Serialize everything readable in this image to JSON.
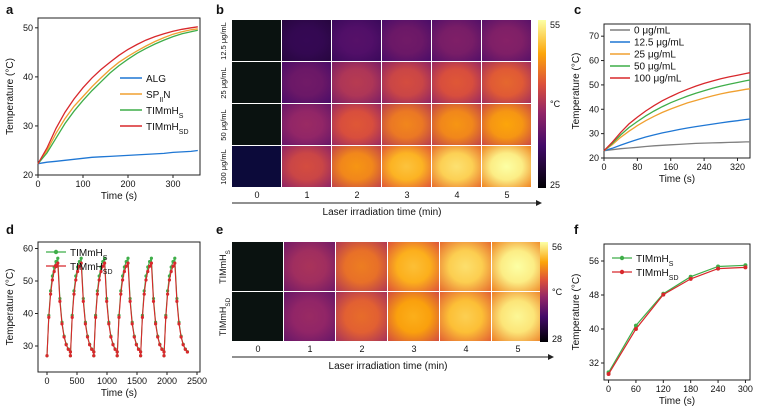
{
  "colors": {
    "ALG": "#1f77d4",
    "SPN": "#f0a030",
    "TIMmHS": "#3fae49",
    "TIMmHSD": "#d8282c",
    "c0": "#7f7f7f",
    "c12": "#1f77d4",
    "c25": "#f0a030",
    "c50": "#3fae49",
    "c100": "#d8282c"
  },
  "chart_data": [
    {
      "panel": "a",
      "type": "line",
      "xlabel": "Time (s)",
      "ylabel": "Temperature (°C)",
      "xlim": [
        0,
        360
      ],
      "ylim": [
        20,
        52
      ],
      "xticks": [
        "0",
        "100",
        "200",
        "300"
      ],
      "yticks": [
        "20",
        "30",
        "40",
        "50"
      ],
      "x": [
        0,
        20,
        40,
        60,
        80,
        100,
        120,
        140,
        160,
        180,
        200,
        220,
        240,
        260,
        280,
        300,
        320,
        340,
        355
      ],
      "series": [
        {
          "name": "ALG",
          "values": [
            22.3,
            22.6,
            22.8,
            23.0,
            23.2,
            23.4,
            23.6,
            23.7,
            23.8,
            23.9,
            24.0,
            24.1,
            24.2,
            24.3,
            24.4,
            24.6,
            24.7,
            24.8,
            25.0
          ]
        },
        {
          "name": "SPN",
          "values": [
            22.3,
            25.0,
            28.5,
            31.5,
            34.0,
            36.0,
            38.0,
            39.8,
            41.5,
            43.0,
            44.2,
            45.3,
            46.3,
            47.2,
            48.0,
            48.7,
            49.2,
            49.6,
            49.8
          ]
        },
        {
          "name": "TIMmHS",
          "values": [
            22.3,
            24.5,
            27.5,
            30.5,
            33.0,
            35.2,
            37.2,
            39.0,
            40.8,
            42.3,
            43.6,
            44.8,
            45.8,
            46.7,
            47.5,
            48.2,
            48.8,
            49.2,
            49.5
          ]
        },
        {
          "name": "TIMmHSD",
          "values": [
            22.3,
            25.5,
            29.5,
            32.8,
            35.5,
            37.8,
            39.8,
            41.5,
            43.0,
            44.4,
            45.6,
            46.6,
            47.5,
            48.2,
            48.8,
            49.3,
            49.7,
            50.0,
            50.2
          ]
        }
      ],
      "legend": [
        {
          "pre": "ALG",
          "sub": "",
          "post": ""
        },
        {
          "pre": "SP",
          "sub": "II",
          "post": "N"
        },
        {
          "pre": "TIMmH",
          "sub": "S",
          "post": ""
        },
        {
          "pre": "TIMmH",
          "sub": "SD",
          "post": ""
        }
      ],
      "legend_position": "center-right"
    },
    {
      "panel": "b",
      "type": "heatmap",
      "rows": [
        "12.5 μg/mL",
        "25 μg/mL",
        "50 μg/mL",
        "100 μg/mL"
      ],
      "cols": [
        "0",
        "1",
        "2",
        "3",
        "4",
        "5"
      ],
      "values": [
        [
          25,
          31,
          34,
          36,
          37,
          37.5
        ],
        [
          25,
          36,
          41,
          43,
          44,
          45
        ],
        [
          25,
          39,
          44,
          47,
          48,
          49
        ],
        [
          25,
          43,
          48,
          51,
          53,
          55
        ]
      ],
      "xlabel": "Laser irradiation time (min)",
      "colorbar": {
        "min": 25,
        "max": 55,
        "unit": "°C"
      }
    },
    {
      "panel": "c",
      "type": "line",
      "xlabel": "Time (s)",
      "ylabel": "Temperature (°C)",
      "xlim": [
        0,
        350
      ],
      "ylim": [
        20,
        75
      ],
      "xticks": [
        "0",
        "80",
        "160",
        "240",
        "320"
      ],
      "yticks": [
        "20",
        "30",
        "40",
        "50",
        "60",
        "70"
      ],
      "x": [
        0,
        20,
        40,
        60,
        80,
        100,
        120,
        140,
        160,
        180,
        200,
        220,
        240,
        260,
        280,
        300,
        320,
        340,
        350
      ],
      "series": [
        {
          "name": "0 μg/mL",
          "values": [
            23.0,
            23.4,
            23.8,
            24.1,
            24.4,
            24.7,
            25.0,
            25.2,
            25.4,
            25.6,
            25.8,
            26.0,
            26.1,
            26.2,
            26.3,
            26.4,
            26.5,
            26.6,
            26.6
          ]
        },
        {
          "name": "12.5 μg/mL",
          "values": [
            23.0,
            24.0,
            25.3,
            26.5,
            27.6,
            28.6,
            29.5,
            30.3,
            31.0,
            31.7,
            32.3,
            32.9,
            33.4,
            33.9,
            34.4,
            34.9,
            35.3,
            35.8,
            36.0
          ]
        },
        {
          "name": "25 μg/mL",
          "values": [
            23.0,
            25.5,
            28.5,
            31.0,
            33.3,
            35.3,
            37.1,
            38.7,
            40.1,
            41.4,
            42.6,
            43.6,
            44.6,
            45.5,
            46.3,
            47.0,
            47.6,
            48.2,
            48.4
          ]
        },
        {
          "name": "50 μg/mL",
          "values": [
            23.0,
            26.0,
            29.5,
            32.5,
            35.0,
            37.3,
            39.3,
            41.1,
            42.7,
            44.1,
            45.4,
            46.6,
            47.6,
            48.6,
            49.5,
            50.3,
            51.0,
            51.7,
            52.0
          ]
        },
        {
          "name": "100 μg/mL",
          "values": [
            23.0,
            26.5,
            30.5,
            34.0,
            36.8,
            39.3,
            41.5,
            43.5,
            45.2,
            46.8,
            48.2,
            49.5,
            50.6,
            51.6,
            52.5,
            53.3,
            54.0,
            54.7,
            55.0
          ]
        }
      ],
      "legend_position": "top-left"
    },
    {
      "panel": "d",
      "type": "line",
      "xlabel": "Time (s)",
      "ylabel": "Temperature (°C)",
      "xlim": [
        -150,
        2550
      ],
      "ylim": [
        22,
        62
      ],
      "xticks": [
        "0",
        "500",
        "1000",
        "1500",
        "2000",
        "2500"
      ],
      "yticks": [
        "30",
        "40",
        "50",
        "60"
      ],
      "series": [
        {
          "name": "TIMmHS",
          "offset": 0
        },
        {
          "name": "TIMmHSD",
          "offset": -1.5
        }
      ],
      "cycle": {
        "count": 6,
        "period": 390,
        "heat_s": 180,
        "t0": 27,
        "tmax": 57
      },
      "legend": [
        {
          "pre": "TIMmH",
          "sub": "S",
          "post": ""
        },
        {
          "pre": "TIMmH",
          "sub": "SD",
          "post": ""
        }
      ],
      "legend_position": "top-left"
    },
    {
      "panel": "e",
      "type": "heatmap",
      "rows": [
        "TIMmHS",
        "TIMmHSD"
      ],
      "row_labels": [
        {
          "pre": "TIMmH",
          "sub": "S"
        },
        {
          "pre": "TIMmH",
          "sub": "SD"
        }
      ],
      "cols": [
        "0",
        "1",
        "2",
        "3",
        "4",
        "5"
      ],
      "values": [
        [
          28,
          42,
          48,
          52,
          54,
          56
        ],
        [
          28,
          41,
          47,
          51,
          53,
          55.5
        ]
      ],
      "xlabel": "Laser irradiation time (min)",
      "colorbar": {
        "min": 28,
        "max": 56,
        "unit": "°C"
      }
    },
    {
      "panel": "f",
      "type": "line",
      "xlabel": "Time (s)",
      "ylabel": "Temperature (°C)",
      "xlim": [
        -10,
        310
      ],
      "ylim": [
        28,
        60
      ],
      "xticks": [
        "0",
        "60",
        "120",
        "180",
        "240",
        "300"
      ],
      "yticks": [
        "32",
        "40",
        "48",
        "56"
      ],
      "x": [
        0,
        60,
        120,
        180,
        240,
        300
      ],
      "series": [
        {
          "name": "TIMmHS",
          "values": [
            29.8,
            40.8,
            48.3,
            52.3,
            54.7,
            55.0
          ]
        },
        {
          "name": "TIMmHSD",
          "values": [
            29.4,
            40.0,
            48.1,
            51.8,
            54.2,
            54.5
          ]
        }
      ],
      "legend": [
        {
          "pre": "TIMmH",
          "sub": "S",
          "post": ""
        },
        {
          "pre": "TIMmH",
          "sub": "SD",
          "post": ""
        }
      ],
      "legend_position": "top-left"
    }
  ]
}
